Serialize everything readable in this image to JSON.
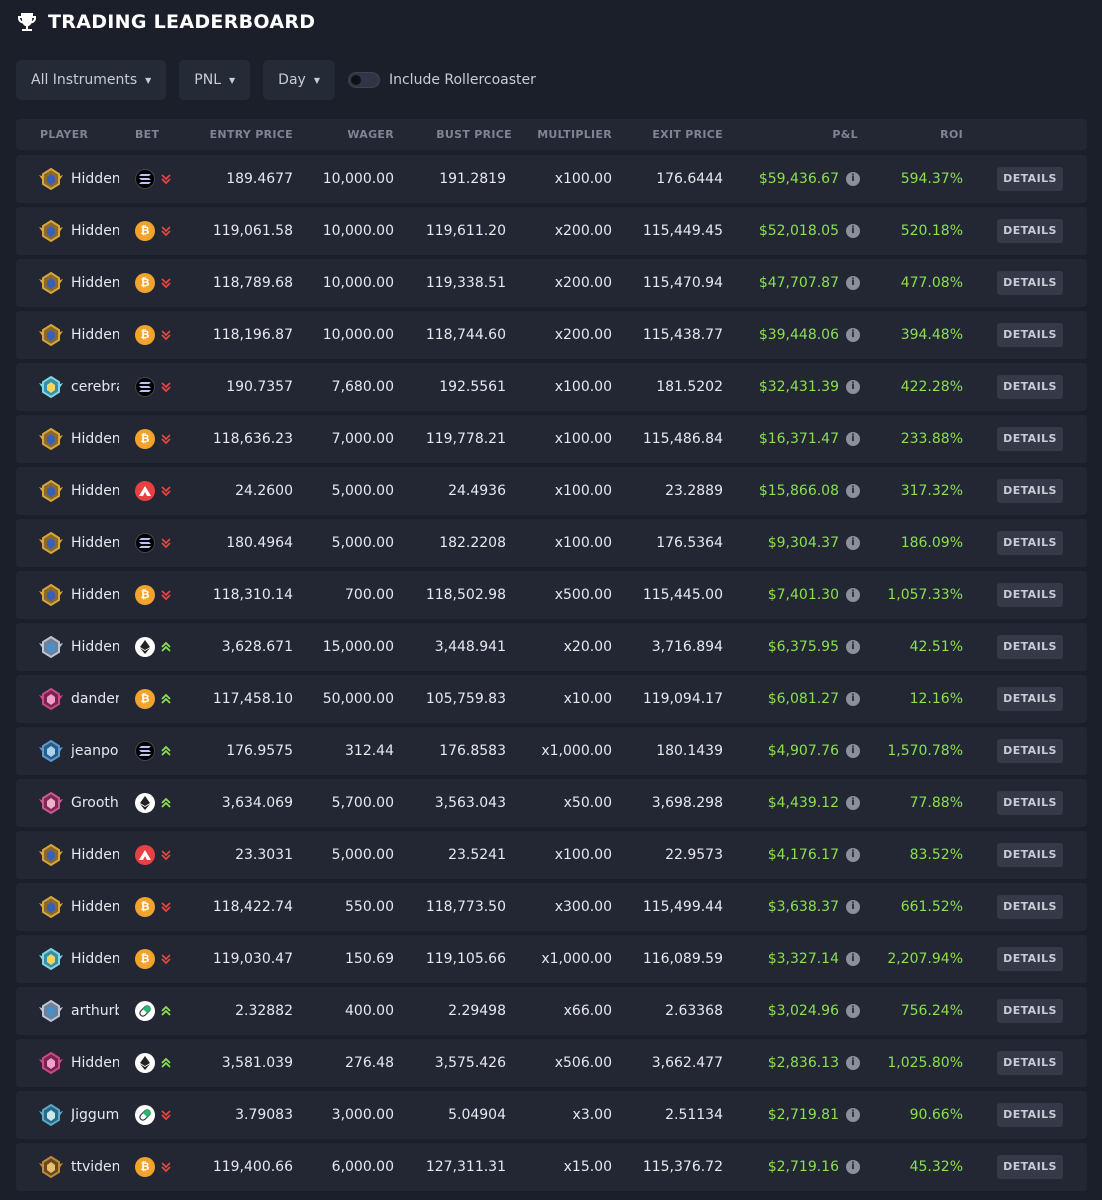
{
  "header": {
    "title": "TRADING LEADERBOARD",
    "icon": "trophy-icon"
  },
  "filters": {
    "instruments": "All Instruments",
    "metric": "PNL",
    "period": "Day",
    "toggle_label": "Include Rollercoaster",
    "toggle_on": false
  },
  "columns": {
    "player": "PLAYER",
    "bet": "BET",
    "entry": "ENTRY PRICE",
    "wager": "WAGER",
    "bust": "BUST PRICE",
    "multiplier": "MULTIPLIER",
    "exit": "EXIT PRICE",
    "pnl": "P&L",
    "roi": "ROI"
  },
  "details_label": "DETAILS",
  "colors": {
    "positive": "#8be04e",
    "down": "#e0473f",
    "up": "#8be04e",
    "background": "#1b1f2a",
    "row": "#222733"
  },
  "rows": [
    {
      "player": "Hidden",
      "badge": "gold",
      "coin": "sol",
      "dir": "down",
      "entry": "189.4677",
      "wager": "10,000.00",
      "bust": "191.2819",
      "multiplier": "x100.00",
      "exit": "176.6444",
      "pnl": "$59,436.67",
      "roi": "594.37%"
    },
    {
      "player": "Hidden",
      "badge": "gold",
      "coin": "btc",
      "dir": "down",
      "entry": "119,061.58",
      "wager": "10,000.00",
      "bust": "119,611.20",
      "multiplier": "x200.00",
      "exit": "115,449.45",
      "pnl": "$52,018.05",
      "roi": "520.18%"
    },
    {
      "player": "Hidden",
      "badge": "gold",
      "coin": "btc",
      "dir": "down",
      "entry": "118,789.68",
      "wager": "10,000.00",
      "bust": "119,338.51",
      "multiplier": "x200.00",
      "exit": "115,470.94",
      "pnl": "$47,707.87",
      "roi": "477.08%"
    },
    {
      "player": "Hidden",
      "badge": "gold",
      "coin": "btc",
      "dir": "down",
      "entry": "118,196.87",
      "wager": "10,000.00",
      "bust": "118,744.60",
      "multiplier": "x200.00",
      "exit": "115,438.77",
      "pnl": "$39,448.06",
      "roi": "394.48%"
    },
    {
      "player": "cerebra",
      "badge": "cyan",
      "coin": "sol",
      "dir": "down",
      "entry": "190.7357",
      "wager": "7,680.00",
      "bust": "192.5561",
      "multiplier": "x100.00",
      "exit": "181.5202",
      "pnl": "$32,431.39",
      "roi": "422.28%"
    },
    {
      "player": "Hidden",
      "badge": "gold",
      "coin": "btc",
      "dir": "down",
      "entry": "118,636.23",
      "wager": "7,000.00",
      "bust": "119,778.21",
      "multiplier": "x100.00",
      "exit": "115,486.84",
      "pnl": "$16,371.47",
      "roi": "233.88%"
    },
    {
      "player": "Hidden",
      "badge": "gold",
      "coin": "avax",
      "dir": "down",
      "entry": "24.2600",
      "wager": "5,000.00",
      "bust": "24.4936",
      "multiplier": "x100.00",
      "exit": "23.2889",
      "pnl": "$15,866.08",
      "roi": "317.32%"
    },
    {
      "player": "Hidden",
      "badge": "gold",
      "coin": "sol",
      "dir": "down",
      "entry": "180.4964",
      "wager": "5,000.00",
      "bust": "182.2208",
      "multiplier": "x100.00",
      "exit": "176.5364",
      "pnl": "$9,304.37",
      "roi": "186.09%"
    },
    {
      "player": "Hidden",
      "badge": "gold",
      "coin": "btc",
      "dir": "down",
      "entry": "118,310.14",
      "wager": "700.00",
      "bust": "118,502.98",
      "multiplier": "x500.00",
      "exit": "115,445.00",
      "pnl": "$7,401.30",
      "roi": "1,057.33%"
    },
    {
      "player": "Hidden",
      "badge": "silver",
      "coin": "eth",
      "dir": "up",
      "entry": "3,628.671",
      "wager": "15,000.00",
      "bust": "3,448.941",
      "multiplier": "x20.00",
      "exit": "3,716.894",
      "pnl": "$6,375.95",
      "roi": "42.51%"
    },
    {
      "player": "danders",
      "badge": "pink",
      "coin": "btc",
      "dir": "up",
      "entry": "117,458.10",
      "wager": "50,000.00",
      "bust": "105,759.83",
      "multiplier": "x10.00",
      "exit": "119,094.17",
      "pnl": "$6,081.27",
      "roi": "12.16%"
    },
    {
      "player": "jeanpol",
      "badge": "blue",
      "coin": "sol",
      "dir": "up",
      "entry": "176.9575",
      "wager": "312.44",
      "bust": "176.8583",
      "multiplier": "x1,000.00",
      "exit": "180.1439",
      "pnl": "$4,907.76",
      "roi": "1,570.78%"
    },
    {
      "player": "Groothe",
      "badge": "magenta",
      "coin": "eth",
      "dir": "up",
      "entry": "3,634.069",
      "wager": "5,700.00",
      "bust": "3,563.043",
      "multiplier": "x50.00",
      "exit": "3,698.298",
      "pnl": "$4,439.12",
      "roi": "77.88%"
    },
    {
      "player": "Hidden",
      "badge": "gold",
      "coin": "avax",
      "dir": "down",
      "entry": "23.3031",
      "wager": "5,000.00",
      "bust": "23.5241",
      "multiplier": "x100.00",
      "exit": "22.9573",
      "pnl": "$4,176.17",
      "roi": "83.52%"
    },
    {
      "player": "Hidden",
      "badge": "gold",
      "coin": "btc",
      "dir": "down",
      "entry": "118,422.74",
      "wager": "550.00",
      "bust": "118,773.50",
      "multiplier": "x300.00",
      "exit": "115,499.44",
      "pnl": "$3,638.37",
      "roi": "661.52%"
    },
    {
      "player": "Hidden",
      "badge": "cyan",
      "coin": "btc",
      "dir": "down",
      "entry": "119,030.47",
      "wager": "150.69",
      "bust": "119,105.66",
      "multiplier": "x1,000.00",
      "exit": "116,089.59",
      "pnl": "$3,327.14",
      "roi": "2,207.94%"
    },
    {
      "player": "arthurb",
      "badge": "silver",
      "coin": "pill",
      "dir": "up",
      "entry": "2.32882",
      "wager": "400.00",
      "bust": "2.29498",
      "multiplier": "x66.00",
      "exit": "2.63368",
      "pnl": "$3,024.96",
      "roi": "756.24%"
    },
    {
      "player": "Hidden",
      "badge": "pink",
      "coin": "eth",
      "dir": "up",
      "entry": "3,581.039",
      "wager": "276.48",
      "bust": "3,575.426",
      "multiplier": "x506.00",
      "exit": "3,662.477",
      "pnl": "$2,836.13",
      "roi": "1,025.80%"
    },
    {
      "player": "Jiggum",
      "badge": "teal",
      "coin": "pill",
      "dir": "down",
      "entry": "3.79083",
      "wager": "3,000.00",
      "bust": "5.04904",
      "multiplier": "x3.00",
      "exit": "2.51134",
      "pnl": "$2,719.81",
      "roi": "90.66%"
    },
    {
      "player": "ttvident",
      "badge": "bronze",
      "coin": "btc",
      "dir": "down",
      "entry": "119,400.66",
      "wager": "6,000.00",
      "bust": "127,311.31",
      "multiplier": "x15.00",
      "exit": "115,376.72",
      "pnl": "$2,719.16",
      "roi": "45.32%"
    }
  ]
}
